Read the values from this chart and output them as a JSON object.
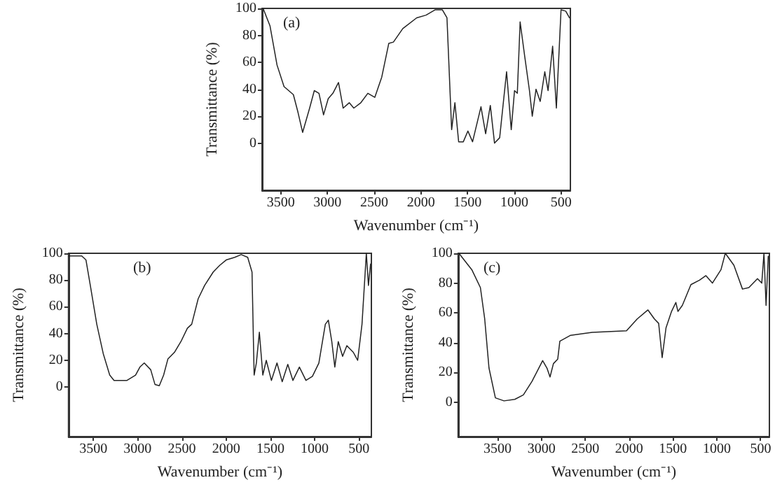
{
  "chart_data": [
    {
      "type": "line",
      "annotations": [
        "(a)"
      ],
      "xlabel": "Wavenumber (cm⁻¹)",
      "ylabel": "Transmittance (%)",
      "xlim": [
        3700,
        400
      ],
      "xticks": [
        3500,
        3000,
        2500,
        2000,
        1500,
        1000,
        500
      ],
      "ylim": [
        -35,
        100
      ],
      "yticks": [
        0,
        20,
        40,
        60,
        80,
        100
      ],
      "line_style": "solid",
      "series": [
        {
          "color": "#222222",
          "x": [
            3689,
            3615,
            3540,
            3465,
            3365,
            3316,
            3266,
            3191,
            3141,
            3091,
            3042,
            2992,
            2942,
            2882,
            2832,
            2767,
            2718,
            2643,
            2568,
            2493,
            2419,
            2344,
            2294,
            2194,
            2045,
            1945,
            1846,
            1771,
            1721,
            1671,
            1636,
            1596,
            1546,
            1497,
            1447,
            1357,
            1307,
            1257,
            1212,
            1157,
            1083,
            1033,
            998,
            968,
            938,
            888,
            838,
            808,
            768,
            723,
            674,
            639,
            590,
            550,
            500,
            450,
            410
          ],
          "values": [
            100,
            87,
            58,
            42,
            36,
            23,
            8,
            26,
            39,
            37,
            21,
            33,
            37,
            45,
            26,
            30,
            26,
            30,
            37,
            34,
            49,
            74,
            75,
            85,
            93,
            95,
            99,
            99,
            93,
            10,
            30,
            1,
            1,
            9,
            1,
            27,
            7,
            28,
            0,
            4,
            53,
            10,
            39,
            37,
            90,
            64,
            39,
            20,
            40,
            31,
            53,
            39,
            72,
            26,
            99,
            98,
            93
          ]
        }
      ]
    },
    {
      "type": "line",
      "annotations": [
        "(b)"
      ],
      "xlabel": "Wavenumber (cm⁻¹)",
      "ylabel": "Transmittance (%)",
      "xlim": [
        3780,
        360
      ],
      "xticks": [
        3500,
        3000,
        2500,
        2000,
        1500,
        1000,
        500
      ],
      "ylim": [
        -37,
        100
      ],
      "yticks": [
        0,
        20,
        40,
        60,
        80,
        100
      ],
      "line_style": "solid",
      "series": [
        {
          "color": "#222222",
          "x": [
            3778,
            3631,
            3583,
            3534,
            3461,
            3388,
            3315,
            3266,
            3120,
            3023,
            2974,
            2925,
            2852,
            2804,
            2755,
            2706,
            2658,
            2584,
            2511,
            2438,
            2389,
            2316,
            2243,
            2146,
            2073,
            2000,
            1903,
            1830,
            1757,
            1708,
            1684,
            1659,
            1625,
            1586,
            1547,
            1489,
            1426,
            1367,
            1304,
            1246,
            1173,
            1099,
            1026,
            953,
            880,
            846,
            807,
            773,
            734,
            685,
            637,
            564,
            515,
            466,
            417,
            393,
            369
          ],
          "values": [
            98,
            98,
            95,
            76,
            47,
            25,
            9,
            5,
            5,
            9,
            15,
            18,
            13,
            2,
            1,
            9,
            21,
            26,
            34,
            44,
            47,
            66,
            76,
            86,
            91,
            95,
            97,
            99,
            97,
            86,
            9,
            18,
            41,
            9,
            20,
            5,
            18,
            4,
            17,
            5,
            15,
            5,
            8,
            18,
            47,
            50,
            34,
            15,
            34,
            23,
            31,
            26,
            20,
            47,
            100,
            76,
            92
          ]
        }
      ]
    },
    {
      "type": "line",
      "annotations": [
        "(c)"
      ],
      "xlabel": "Wavenumber (cm⁻¹)",
      "ylabel": "Transmittance (%)",
      "xlim": [
        3950,
        400
      ],
      "xticks": [
        3500,
        3000,
        2500,
        2000,
        1500,
        1000,
        500
      ],
      "ylim": [
        -23,
        100
      ],
      "yticks": [
        0,
        20,
        40,
        60,
        80,
        100
      ],
      "line_style": "solid",
      "series": [
        {
          "color": "#222222",
          "x": [
            3941,
            3794,
            3696,
            3647,
            3598,
            3525,
            3427,
            3304,
            3206,
            3108,
            2986,
            2937,
            2902,
            2863,
            2814,
            2790,
            2667,
            2422,
            2030,
            1907,
            1785,
            1712,
            1663,
            1623,
            1579,
            1516,
            1467,
            1443,
            1393,
            1295,
            1197,
            1124,
            1050,
            952,
            903,
            805,
            707,
            634,
            536,
            487,
            462,
            438,
            413
          ],
          "values": [
            100,
            89,
            77,
            56,
            23,
            3,
            1,
            2,
            5,
            14,
            28,
            23,
            17,
            26,
            29,
            41,
            45,
            47,
            48,
            56,
            62,
            56,
            53,
            30,
            50,
            61,
            67,
            61,
            65,
            79,
            82,
            85,
            80,
            89,
            100,
            92,
            76,
            77,
            83,
            80,
            100,
            65,
            98
          ]
        }
      ]
    }
  ]
}
